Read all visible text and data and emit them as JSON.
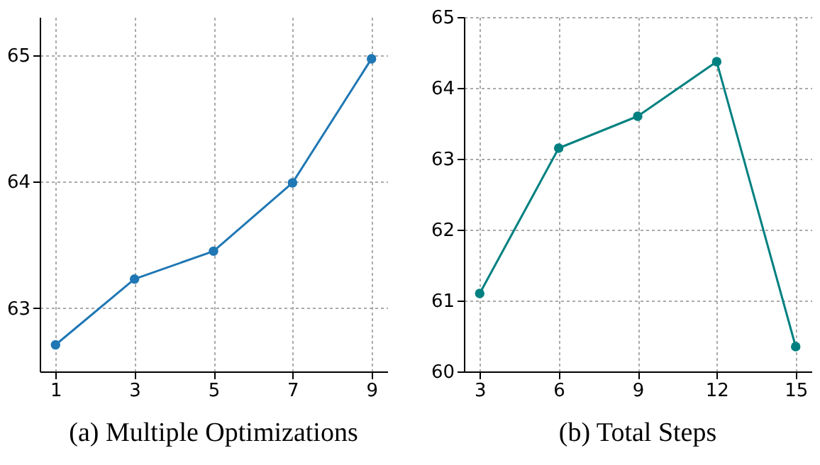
{
  "chart_data": [
    {
      "type": "line",
      "title": "(a) Multiple Optimizations",
      "x": [
        1,
        3,
        5,
        7,
        9
      ],
      "series": [
        {
          "color": "#1f77b4",
          "values": [
            62.71,
            63.23,
            63.45,
            63.99,
            64.97
          ]
        }
      ],
      "xlim": [
        0.6,
        9.4
      ],
      "xticks": [
        1,
        3,
        5,
        7,
        9
      ],
      "ylim": [
        62.5,
        65.3
      ],
      "yticks": [
        63,
        64,
        65
      ],
      "grid": true,
      "marker": "circle",
      "line_style": "solid"
    },
    {
      "type": "line",
      "title": "(b) Total Steps",
      "x": [
        3,
        6,
        9,
        12,
        15
      ],
      "series": [
        {
          "color": "#008080",
          "values": [
            61.1,
            63.15,
            63.6,
            64.37,
            60.35
          ]
        }
      ],
      "xlim": [
        2.4,
        15.6
      ],
      "xticks": [
        3,
        6,
        9,
        12,
        15
      ],
      "ylim": [
        60,
        65
      ],
      "yticks": [
        60,
        61,
        62,
        63,
        64,
        65
      ],
      "grid": true,
      "marker": "circle",
      "line_style": "solid"
    }
  ]
}
